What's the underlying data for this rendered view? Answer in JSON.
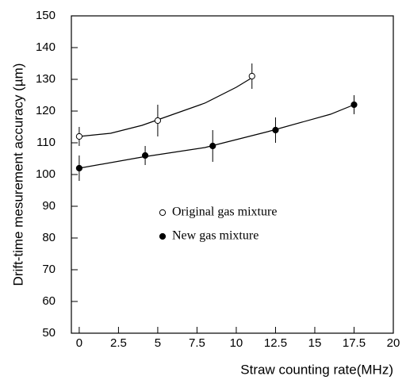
{
  "chart_data": {
    "type": "scatter",
    "x_label": "Straw counting rate(MHz)",
    "y_label": "Drift-time mesurement accuracy (µm)",
    "xlim": [
      -0.5,
      20
    ],
    "ylim": [
      50,
      150
    ],
    "xticks": [
      0,
      2.5,
      5,
      7.5,
      10,
      12.5,
      15,
      17.5,
      20
    ],
    "yticks": [
      50,
      60,
      70,
      80,
      90,
      100,
      110,
      120,
      130,
      140,
      150
    ],
    "legend": "center",
    "series": [
      {
        "name": "Original gas mixture",
        "color": "#000000",
        "marker": "open",
        "x": [
          0,
          5,
          11
        ],
        "values": [
          112,
          117,
          131
        ],
        "errors": [
          3,
          5,
          4
        ],
        "fit": {
          "x": [
            0,
            2,
            4,
            6,
            8,
            10,
            11
          ],
          "values": [
            112,
            113,
            115.5,
            119,
            122.5,
            127.5,
            130.5
          ]
        }
      },
      {
        "name": "New gas mixture",
        "color": "#000000",
        "marker": "filled",
        "x": [
          0,
          4.2,
          8.5,
          12.5,
          17.5
        ],
        "values": [
          102,
          106,
          109,
          114,
          122
        ],
        "errors": [
          4,
          3,
          5,
          4,
          3
        ],
        "fit": {
          "x": [
            0,
            4,
            8,
            12,
            16,
            17.5
          ],
          "values": [
            102,
            105.5,
            108.5,
            113.5,
            119,
            122
          ]
        }
      }
    ]
  }
}
